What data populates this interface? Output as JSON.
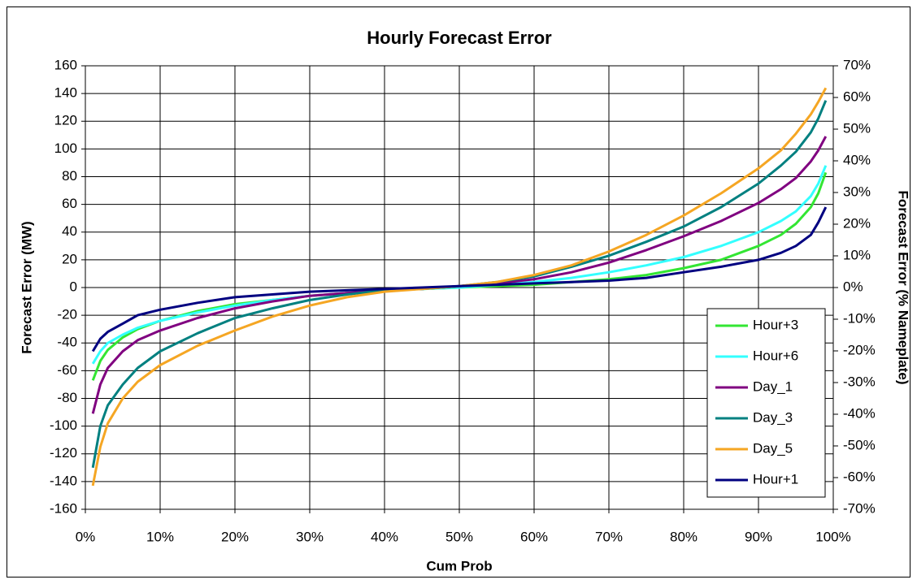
{
  "chart_data": {
    "type": "line",
    "title": "Hourly Forecast Error",
    "x_label": "Cum Prob",
    "y_label": "Forecast Error (MW)",
    "y2_label": "Forecast Error (% Nameplate)",
    "x": [
      1,
      2,
      3,
      5,
      7,
      10,
      15,
      20,
      25,
      30,
      35,
      40,
      45,
      50,
      55,
      60,
      65,
      70,
      75,
      80,
      85,
      90,
      93,
      95,
      97,
      98,
      99
    ],
    "series": [
      {
        "name": "Hour+3",
        "color": "#33e633",
        "values": [
          -67,
          -53,
          -45,
          -36,
          -30,
          -24,
          -17,
          -12,
          -9,
          -6,
          -4,
          -2,
          -1,
          0,
          1,
          2,
          4,
          6,
          9,
          14,
          20,
          30,
          38,
          46,
          58,
          68,
          83
        ]
      },
      {
        "name": "Hour+6",
        "color": "#33ffff",
        "values": [
          -55,
          -46,
          -40,
          -34,
          -29,
          -24,
          -18,
          -13,
          -9,
          -6,
          -4,
          -2,
          -1,
          0,
          2,
          4,
          7,
          11,
          16,
          22,
          30,
          40,
          48,
          55,
          66,
          75,
          88
        ]
      },
      {
        "name": "Day_1",
        "color": "#800080",
        "values": [
          -91,
          -70,
          -58,
          -46,
          -38,
          -31,
          -22,
          -15,
          -10,
          -6,
          -4,
          -2,
          -1,
          1,
          3,
          6,
          11,
          18,
          27,
          37,
          48,
          61,
          71,
          79,
          91,
          99,
          109
        ]
      },
      {
        "name": "Day_3",
        "color": "#008080",
        "values": [
          -130,
          -100,
          -85,
          -70,
          -58,
          -46,
          -33,
          -22,
          -15,
          -9,
          -5,
          -2,
          -1,
          1,
          4,
          8,
          15,
          23,
          33,
          44,
          58,
          75,
          88,
          98,
          112,
          122,
          135
        ]
      },
      {
        "name": "Day_5",
        "color": "#f5a623",
        "values": [
          -143,
          -115,
          -98,
          -80,
          -68,
          -56,
          -42,
          -31,
          -21,
          -13,
          -7,
          -3,
          -1,
          1,
          4,
          9,
          16,
          26,
          38,
          52,
          68,
          86,
          99,
          111,
          125,
          134,
          144
        ]
      },
      {
        "name": "Hour+1",
        "color": "#000080",
        "values": [
          -46,
          -37,
          -32,
          -26,
          -20,
          -16,
          -11,
          -7,
          -5,
          -3,
          -2,
          -1,
          0,
          1,
          2,
          3,
          4,
          5,
          7,
          11,
          15,
          20,
          25,
          30,
          38,
          47,
          58
        ]
      }
    ],
    "xlim": [
      0,
      100
    ],
    "xticks": [
      {
        "value": 0,
        "label": "0%"
      },
      {
        "value": 10,
        "label": "10%"
      },
      {
        "value": 20,
        "label": "20%"
      },
      {
        "value": 30,
        "label": "30%"
      },
      {
        "value": 40,
        "label": "40%"
      },
      {
        "value": 50,
        "label": "50%"
      },
      {
        "value": 60,
        "label": "60%"
      },
      {
        "value": 70,
        "label": "70%"
      },
      {
        "value": 80,
        "label": "80%"
      },
      {
        "value": 90,
        "label": "90%"
      },
      {
        "value": 100,
        "label": "100%"
      }
    ],
    "ylim": [
      -160,
      160
    ],
    "yticks": [
      160,
      140,
      120,
      100,
      80,
      60,
      40,
      20,
      0,
      -20,
      -40,
      -60,
      -80,
      -100,
      -120,
      -140,
      -160
    ],
    "y2lim": [
      -70,
      70
    ],
    "y2ticks": [
      {
        "value": 70,
        "label": "70%"
      },
      {
        "value": 60,
        "label": "60%"
      },
      {
        "value": 50,
        "label": "50%"
      },
      {
        "value": 40,
        "label": "40%"
      },
      {
        "value": 30,
        "label": "30%"
      },
      {
        "value": 20,
        "label": "20%"
      },
      {
        "value": 10,
        "label": "10%"
      },
      {
        "value": 0,
        "label": "0%"
      },
      {
        "value": -10,
        "label": "-10%"
      },
      {
        "value": -20,
        "label": "-20%"
      },
      {
        "value": -30,
        "label": "-30%"
      },
      {
        "value": -40,
        "label": "-40%"
      },
      {
        "value": -50,
        "label": "-50%"
      },
      {
        "value": -60,
        "label": "-60%"
      },
      {
        "value": -70,
        "label": "-70%"
      }
    ],
    "grid": true,
    "legend": "lower right"
  }
}
